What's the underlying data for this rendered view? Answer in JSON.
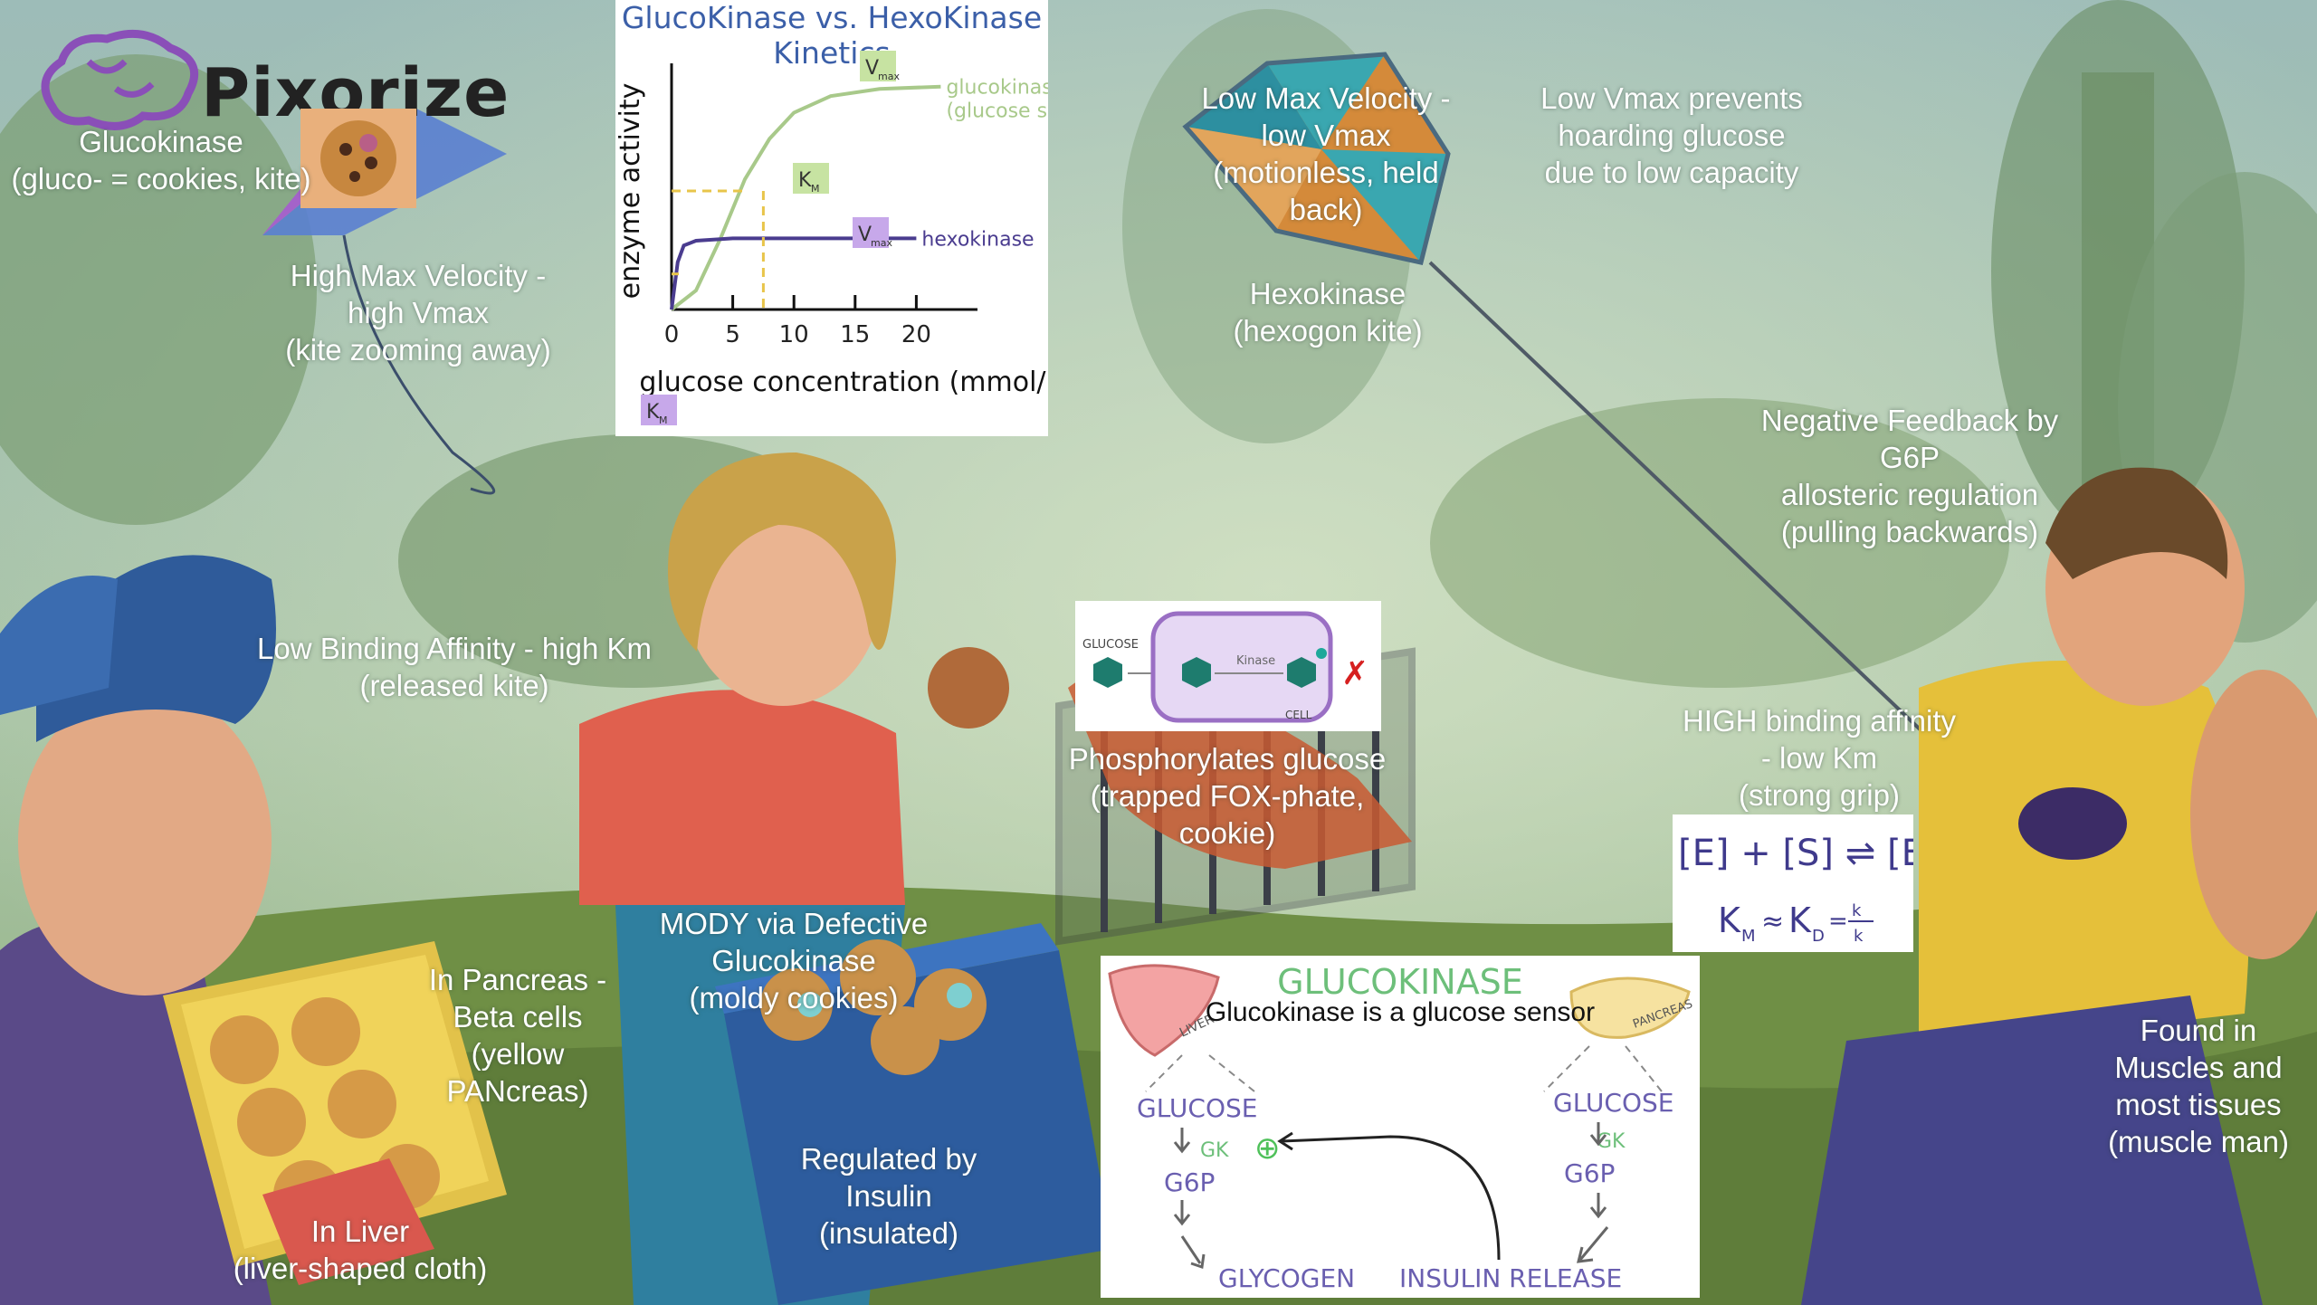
{
  "logo": {
    "text": "Pixorize"
  },
  "labels": {
    "glucokinase": "Glucokinase\n(gluco- = cookies, kite)",
    "high_vmax": "High Max Velocity -\nhigh Vmax\n(kite zooming away)",
    "low_vmax": "Low Max Velocity -\nlow Vmax\n(motionless, held\nback)",
    "low_vmax_prevents": "Low Vmax prevents\nhoarding glucose\ndue to low capacity",
    "hexokinase": "Hexokinase\n(hexogon kite)",
    "negative_feedback": "Negative Feedback by\nG6P\nallosteric regulation\n(pulling backwards)",
    "low_affinity": "Low Binding Affinity - high Km\n(released kite)",
    "high_affinity": "HIGH binding affinity\n- low Km\n(strong grip)",
    "phosphorylates": "Phosphorylates glucose\n(trapped FOX-phate,\ncookie)",
    "mody": "MODY via Defective\nGlucokinase\n(moldy cookies)",
    "pancreas": "In Pancreas -\nBeta cells\n(yellow\nPANcreas)",
    "liver": "In Liver\n(liver-shaped cloth)",
    "insulin": "Regulated by\nInsulin\n(insulated)",
    "muscles": "Found in\nMuscles and\nmost tissues\n(muscle man)",
    "sensor": "Glucokinase is a\nglucose sensor"
  },
  "chart_data": {
    "type": "line",
    "title": "GlucoKinase vs. HexoKinase Kinetics",
    "xlabel": "glucose concentration (mmol/l)",
    "ylabel": "enzyme activity",
    "x_ticks": [
      "0",
      "5",
      "10",
      "15",
      "20"
    ],
    "xlim": [
      0,
      25
    ],
    "ylim": [
      0,
      1
    ],
    "series": [
      {
        "name": "glucokinase\n(glucose sensor)",
        "color": "#a8c98a",
        "points": [
          [
            0,
            0
          ],
          [
            2,
            0.08
          ],
          [
            4,
            0.3
          ],
          [
            6,
            0.55
          ],
          [
            8,
            0.72
          ],
          [
            10,
            0.83
          ],
          [
            13,
            0.9
          ],
          [
            17,
            0.93
          ],
          [
            22,
            0.94
          ]
        ]
      },
      {
        "name": "hexokinase",
        "color": "#4a3c8f",
        "points": [
          [
            0,
            0
          ],
          [
            0.5,
            0.2
          ],
          [
            1,
            0.27
          ],
          [
            2,
            0.29
          ],
          [
            5,
            0.3
          ],
          [
            12,
            0.3
          ],
          [
            20,
            0.3
          ]
        ]
      }
    ],
    "annotations": {
      "vmax": "V",
      "vmax_sub": "max",
      "km": "K",
      "km_sub": "M"
    }
  },
  "cell_diagram": {
    "glucose": "GLUCOSE",
    "enzyme": "Kinase",
    "cell": "CELL"
  },
  "km_formula": {
    "line1": "[E] + [S] ⇌ [ES]",
    "k1": "k",
    "km1": "k",
    "line2_left": "K",
    "line2_sub": "M",
    "approx": "≈",
    "kd": "K",
    "kd_sub": "D",
    "eq": "="
  },
  "gk_diagram": {
    "title": "GLUCOKINASE",
    "liver": "LIVER",
    "pancreas": "PANCREAS",
    "left_glucose": "GLUCOSE",
    "left_gk": "GK",
    "left_g6p": "G6P",
    "glycogen": "GLYCOGEN",
    "right_glucose": "GLUCOSE",
    "right_gk": "GK",
    "right_g6p": "G6P",
    "insulin_release": "INSULIN RELEASE",
    "plus": "⊕"
  }
}
